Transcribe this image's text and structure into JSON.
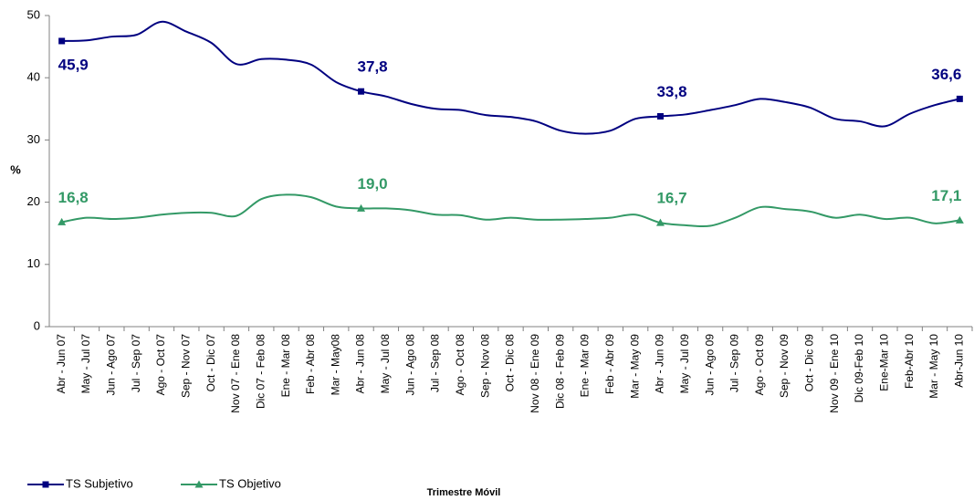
{
  "chart_data": {
    "type": "line",
    "categories": [
      "Abr - Jun 07",
      "May - Jul 07",
      "Jun - Ago 07",
      "Jul - Sep 07",
      "Ago - Oct 07",
      "Sep - Nov 07",
      "Oct - Dic 07",
      "Nov 07 - Ene 08",
      "Dic 07 - Feb 08",
      "Ene - Mar 08",
      "Feb - Abr 08",
      "Mar - May08",
      "Abr - Jun 08",
      "May - Jul 08",
      "Jun - Ago 08",
      "Jul - Sep 08",
      "Ago - Oct 08",
      "Sep - Nov 08",
      "Oct - Dic 08",
      "Nov 08 - Ene 09",
      "Dic 08 - Feb 09",
      "Ene - Mar 09",
      "Feb - Abr 09",
      "Mar - May 09",
      "Abr - Jun 09",
      "May - Jul 09",
      "Jun - Ago 09",
      "Jul - Sep 09",
      "Ago - Oct 09",
      "Sep - Nov 09",
      "Oct - Dic 09",
      "Nov 09 - Ene 10",
      "Dic 09-Feb 10",
      "Ene-Mar 10",
      "Feb-Abr 10",
      "Mar - May 10",
      "Abr-Jun 10"
    ],
    "series": [
      {
        "name": "TS Subjetivo",
        "color": "#000080",
        "marker": "square",
        "values": [
          45.9,
          46,
          46.6,
          46.9,
          49,
          47.4,
          45.6,
          42.2,
          43,
          42.9,
          42.1,
          39.3,
          37.8,
          37,
          35.8,
          35,
          34.8,
          34,
          33.7,
          33,
          31.5,
          31,
          31.5,
          33.4,
          33.8,
          34.1,
          34.8,
          35.6,
          36.6,
          36.1,
          35.2,
          33.4,
          33,
          32.2,
          34.2,
          35.6,
          36.6
        ],
        "value_labels": [
          "45,9",
          null,
          null,
          null,
          null,
          null,
          null,
          null,
          null,
          null,
          null,
          null,
          "37,8",
          null,
          null,
          null,
          null,
          null,
          null,
          null,
          null,
          null,
          null,
          null,
          "33,8",
          null,
          null,
          null,
          null,
          null,
          null,
          null,
          null,
          null,
          null,
          null,
          "36,6"
        ]
      },
      {
        "name": "TS Objetivo",
        "color": "#339966",
        "marker": "triangle",
        "values": [
          16.8,
          17.5,
          17.3,
          17.5,
          18,
          18.3,
          18.3,
          17.8,
          20.5,
          21.2,
          20.8,
          19.3,
          19,
          19,
          18.7,
          18,
          17.9,
          17.2,
          17.5,
          17.2,
          17.2,
          17.3,
          17.5,
          18,
          16.7,
          16.3,
          16.2,
          17.5,
          19.2,
          18.9,
          18.5,
          17.5,
          18,
          17.3,
          17.5,
          16.6,
          17.1
        ],
        "value_labels": [
          "16,8",
          null,
          null,
          null,
          null,
          null,
          null,
          null,
          null,
          null,
          null,
          null,
          "19,0",
          null,
          null,
          null,
          null,
          null,
          null,
          null,
          null,
          null,
          null,
          null,
          "16,7",
          null,
          null,
          null,
          null,
          null,
          null,
          null,
          null,
          null,
          null,
          null,
          "17,1"
        ]
      }
    ],
    "ylabel": "%",
    "xlabel": "Trimestre Móvil",
    "ylim": [
      0,
      50
    ],
    "yticks": [
      0,
      10,
      20,
      30,
      40,
      50
    ],
    "grid": false,
    "legend": "bottom-left"
  }
}
